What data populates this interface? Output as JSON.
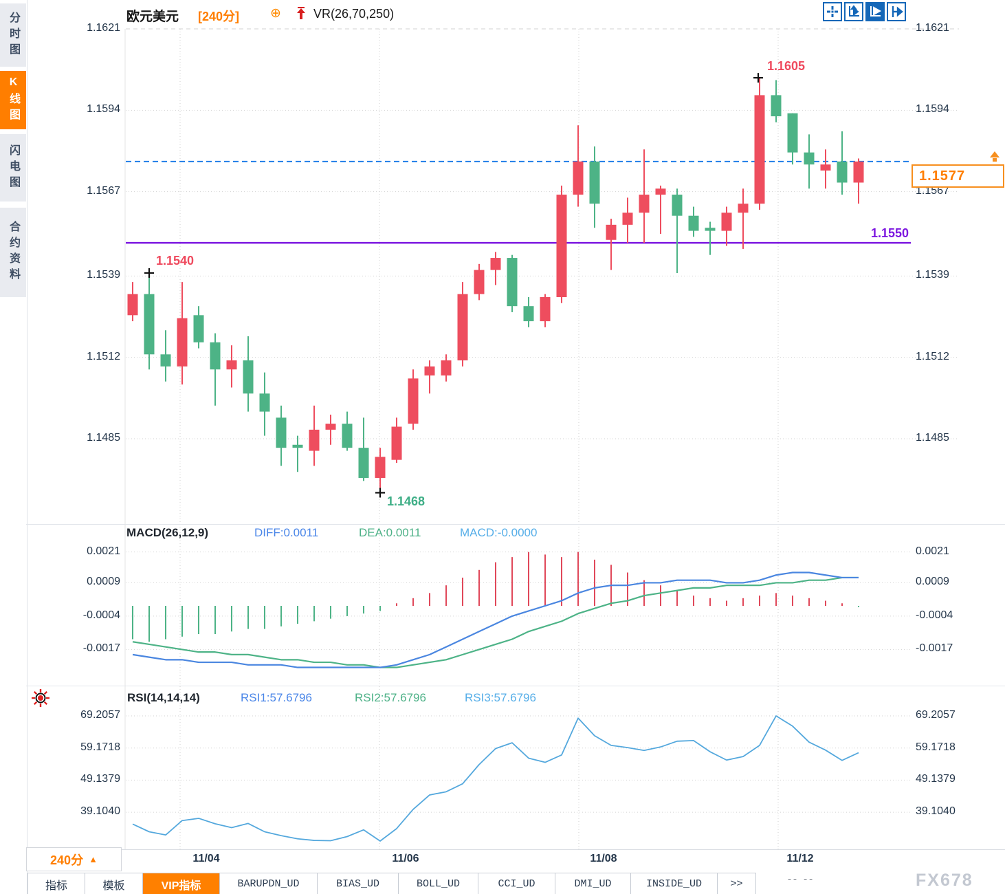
{
  "colors": {
    "up_red": "#ee4d5e",
    "down_green": "#4db386",
    "accent_orange": "#ff7e00",
    "last_price_blue": "#1f7de8",
    "support_purple": "#7d18e0",
    "diff_blue": "#4a86e0",
    "dea_green": "#4db387",
    "macd_cyan": "#56aee8",
    "rsi_blue": "#54a8dd",
    "toolbar_blue": "#1467b8",
    "grid_gray": "#cccccc"
  },
  "sidebar": {
    "tabs": [
      {
        "label": "分时图",
        "active": false
      },
      {
        "label": "K线图",
        "active": true
      },
      {
        "label": "闪电图",
        "active": false
      },
      {
        "label": "合约资料",
        "active": false
      }
    ]
  },
  "header": {
    "symbol": "欧元美元",
    "period_tag": "[240分]",
    "plus_icon": "⊕",
    "overlay_indicator": "VR(26,70,250)"
  },
  "toolbar": {
    "icons": [
      "move-icon",
      "axis-scale-icon",
      "pointer-play-icon",
      "go-latest-icon"
    ],
    "active_index": 2
  },
  "main_chart": {
    "left_ticks": [
      "1.1621",
      "1.1594",
      "1.1567",
      "1.1539",
      "1.1512",
      "1.1485"
    ],
    "right_ticks": [
      "1.1621",
      "1.1594",
      "1.1567",
      "1.1539",
      "1.1512",
      "1.1485"
    ],
    "markers": {
      "high1": {
        "label": "1.1540"
      },
      "low": {
        "label": "1.1468"
      },
      "high2": {
        "label": "1.1605"
      }
    },
    "support_line": {
      "label": "1.1550"
    },
    "last_price_box": {
      "label": "1.1577"
    }
  },
  "macd_panel": {
    "title": "MACD(26,12,9)",
    "diff_label": "DIFF:0.0011",
    "dea_label": "DEA:0.0011",
    "macd_label": "MACD:-0.0000",
    "ticks": [
      "0.0021",
      "0.0009",
      "-0.0004",
      "-0.0017"
    ]
  },
  "rsi_panel": {
    "title": "RSI(14,14,14)",
    "rsi1_label": "RSI1:57.6796",
    "rsi2_label": "RSI2:57.6796",
    "rsi3_label": "RSI3:57.6796",
    "ticks": [
      "69.2057",
      "59.1718",
      "49.1379",
      "39.1040"
    ]
  },
  "x_axis": {
    "labels": [
      "11/04",
      "11/06",
      "11/08",
      "11/12"
    ]
  },
  "timeframe_selector": {
    "label": "240分",
    "arrow": "▲"
  },
  "bottom_tabs": {
    "tabs": [
      {
        "label": "指标",
        "active": false,
        "mono": false
      },
      {
        "label": "模板",
        "active": false,
        "mono": false
      },
      {
        "label": "VIP指标",
        "active": true,
        "mono": false
      },
      {
        "label": "BARUPDN_UD",
        "active": false,
        "mono": true
      },
      {
        "label": "BIAS_UD",
        "active": false,
        "mono": true
      },
      {
        "label": "BOLL_UD",
        "active": false,
        "mono": true
      },
      {
        "label": "CCI_UD",
        "active": false,
        "mono": true
      },
      {
        "label": "DMI_UD",
        "active": false,
        "mono": true
      },
      {
        "label": "INSIDE_UD",
        "active": false,
        "mono": true
      },
      {
        "label": ">>",
        "active": false,
        "mono": true
      }
    ],
    "partial_text": "-- --"
  },
  "watermark": "FX678",
  "chart_data": {
    "type": "candlestick",
    "title": "欧元美元 [240分]",
    "symbol": "欧元美元",
    "period": "240分",
    "overlay_indicator": "VR(26,70,250)",
    "price_ticks": [
      1.1621,
      1.1594,
      1.1567,
      1.1539,
      1.1512,
      1.1485
    ],
    "support_level": 1.155,
    "last_price": 1.1577,
    "annotations": {
      "swing_high_1": 1.154,
      "swing_low": 1.1468,
      "swing_high_2": 1.1605
    },
    "x_labels": [
      "11/04",
      "11/06",
      "11/08",
      "11/12"
    ],
    "candles_ohlc": [
      [
        1.1526,
        1.1537,
        1.1524,
        1.1533
      ],
      [
        1.1533,
        1.154,
        1.1508,
        1.1513
      ],
      [
        1.1513,
        1.1521,
        1.1504,
        1.1509
      ],
      [
        1.1509,
        1.1537,
        1.1503,
        1.1525
      ],
      [
        1.1526,
        1.1529,
        1.1515,
        1.1517
      ],
      [
        1.1517,
        1.152,
        1.1496,
        1.1508
      ],
      [
        1.1508,
        1.1516,
        1.1502,
        1.1511
      ],
      [
        1.1511,
        1.1519,
        1.1494,
        1.15
      ],
      [
        1.15,
        1.1507,
        1.1486,
        1.1494
      ],
      [
        1.1492,
        1.1496,
        1.1476,
        1.1482
      ],
      [
        1.1483,
        1.1486,
        1.1474,
        1.1482
      ],
      [
        1.1481,
        1.1496,
        1.1476,
        1.1488
      ],
      [
        1.1488,
        1.1493,
        1.1483,
        1.149
      ],
      [
        1.149,
        1.1494,
        1.1481,
        1.1482
      ],
      [
        1.1482,
        1.1492,
        1.1471,
        1.1472
      ],
      [
        1.1472,
        1.1482,
        1.1468,
        1.1479
      ],
      [
        1.1478,
        1.1492,
        1.1477,
        1.1489
      ],
      [
        1.149,
        1.1508,
        1.1488,
        1.1505
      ],
      [
        1.1506,
        1.1511,
        1.15,
        1.1509
      ],
      [
        1.1506,
        1.1513,
        1.1504,
        1.1511
      ],
      [
        1.1511,
        1.1537,
        1.1509,
        1.1533
      ],
      [
        1.1533,
        1.1543,
        1.1531,
        1.1541
      ],
      [
        1.1541,
        1.1547,
        1.1536,
        1.1545
      ],
      [
        1.1545,
        1.1546,
        1.1527,
        1.1529
      ],
      [
        1.1529,
        1.1532,
        1.1522,
        1.1524
      ],
      [
        1.1524,
        1.1533,
        1.1522,
        1.1532
      ],
      [
        1.1532,
        1.1569,
        1.153,
        1.1566
      ],
      [
        1.1566,
        1.1589,
        1.1562,
        1.1577
      ],
      [
        1.1577,
        1.1582,
        1.1555,
        1.1563
      ],
      [
        1.1551,
        1.1558,
        1.1541,
        1.1556
      ],
      [
        1.1556,
        1.1565,
        1.155,
        1.156
      ],
      [
        1.156,
        1.1581,
        1.155,
        1.1566
      ],
      [
        1.1566,
        1.1569,
        1.1553,
        1.1568
      ],
      [
        1.1566,
        1.1568,
        1.154,
        1.1559
      ],
      [
        1.1559,
        1.1562,
        1.1552,
        1.1554
      ],
      [
        1.1555,
        1.1557,
        1.1546,
        1.1554
      ],
      [
        1.1554,
        1.1562,
        1.1549,
        1.156
      ],
      [
        1.156,
        1.1568,
        1.1548,
        1.1563
      ],
      [
        1.1563,
        1.1605,
        1.1561,
        1.1599
      ],
      [
        1.1599,
        1.1604,
        1.159,
        1.1592
      ],
      [
        1.1593,
        1.1593,
        1.1576,
        1.158
      ],
      [
        1.158,
        1.1586,
        1.1568,
        1.1576
      ],
      [
        1.1574,
        1.1581,
        1.1568,
        1.1576
      ],
      [
        1.1577,
        1.1587,
        1.1566,
        1.157
      ],
      [
        1.157,
        1.1578,
        1.1563,
        1.1577
      ]
    ],
    "macd": {
      "params": "(26,12,9)",
      "last": {
        "diff": 0.0011,
        "dea": 0.0011,
        "macd": -0.0
      },
      "ticks": [
        0.0021,
        0.0009,
        -0.0004,
        -0.0017
      ],
      "hist": [
        -0.0013,
        -0.0014,
        -0.0013,
        -0.0012,
        -0.0011,
        -0.0011,
        -0.001,
        -0.0009,
        -0.0009,
        -0.0008,
        -0.0007,
        -0.0006,
        -0.0005,
        -0.0004,
        -0.0003,
        -0.0002,
        0.0001,
        0.0003,
        0.0005,
        0.0008,
        0.0011,
        0.0014,
        0.0017,
        0.0019,
        0.0021,
        0.002,
        0.0019,
        0.0021,
        0.0018,
        0.0016,
        0.0013,
        0.001,
        0.0008,
        0.0006,
        0.0004,
        0.0003,
        0.0002,
        0.0003,
        0.0004,
        0.0005,
        0.0004,
        0.0003,
        0.0002,
        0.0001,
        -5e-05
      ],
      "diff": [
        -0.0019,
        -0.002,
        -0.0021,
        -0.0021,
        -0.0022,
        -0.0022,
        -0.0022,
        -0.0023,
        -0.0023,
        -0.0023,
        -0.0024,
        -0.0024,
        -0.0024,
        -0.0024,
        -0.0024,
        -0.0024,
        -0.0023,
        -0.0021,
        -0.0019,
        -0.0016,
        -0.0013,
        -0.001,
        -0.0007,
        -0.0004,
        -0.0002,
        0.0,
        0.0002,
        0.0005,
        0.0007,
        0.0008,
        0.0008,
        0.0009,
        0.0009,
        0.001,
        0.001,
        0.001,
        0.0009,
        0.0009,
        0.001,
        0.0012,
        0.0013,
        0.0013,
        0.0012,
        0.0011,
        0.0011
      ],
      "dea": [
        -0.0014,
        -0.0015,
        -0.0016,
        -0.0017,
        -0.0018,
        -0.0018,
        -0.0019,
        -0.0019,
        -0.002,
        -0.0021,
        -0.0021,
        -0.0022,
        -0.0022,
        -0.0023,
        -0.0023,
        -0.0024,
        -0.0024,
        -0.0023,
        -0.0022,
        -0.0021,
        -0.0019,
        -0.0017,
        -0.0015,
        -0.0013,
        -0.001,
        -0.0008,
        -0.0006,
        -0.0003,
        -0.0001,
        0.0001,
        0.0002,
        0.0004,
        0.0005,
        0.0006,
        0.0007,
        0.0007,
        0.0008,
        0.0008,
        0.0008,
        0.0009,
        0.0009,
        0.001,
        0.001,
        0.0011,
        0.0011
      ]
    },
    "rsi": {
      "params": "(14,14,14)",
      "last": 57.6796,
      "ticks": [
        69.2057,
        59.1718,
        49.1379,
        39.104
      ],
      "values": [
        35.4,
        33.0,
        32.0,
        36.5,
        37.2,
        35.5,
        34.3,
        35.6,
        33.0,
        31.8,
        30.8,
        30.3,
        30.2,
        31.5,
        33.6,
        30.1,
        34.0,
        40.0,
        44.5,
        45.5,
        48.0,
        54.0,
        59.0,
        60.8,
        56.0,
        54.7,
        57.0,
        68.5,
        63.0,
        60.0,
        59.3,
        58.4,
        59.5,
        61.3,
        61.5,
        58.0,
        55.4,
        56.5,
        60.0,
        69.2,
        66.0,
        61.0,
        58.5,
        55.3,
        57.7
      ]
    }
  }
}
